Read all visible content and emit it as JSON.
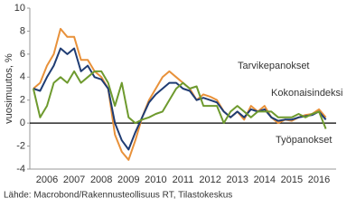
{
  "chart_data": {
    "type": "line",
    "y_label": "vuosimuutos, %",
    "source": "Lähde: Macrobond/Rakennusteollisuus RT, Tilastokeskus",
    "x": [
      2006.0,
      2006.25,
      2006.5,
      2006.75,
      2007.0,
      2007.25,
      2007.5,
      2007.75,
      2008.0,
      2008.25,
      2008.5,
      2008.75,
      2009.0,
      2009.25,
      2009.5,
      2009.75,
      2010.0,
      2010.25,
      2010.5,
      2010.75,
      2011.0,
      2011.25,
      2011.5,
      2011.75,
      2012.0,
      2012.25,
      2012.5,
      2012.75,
      2013.0,
      2013.25,
      2013.5,
      2013.75,
      2014.0,
      2014.25,
      2014.5,
      2014.75,
      2015.0,
      2015.25,
      2015.5,
      2015.75,
      2016.0,
      2016.25,
      2016.5,
      2016.75
    ],
    "series": [
      {
        "name": "Tarvikepanokset",
        "color": "#e8913a",
        "values": [
          3,
          3.5,
          5,
          6,
          8.2,
          7.5,
          7.5,
          5.5,
          5.5,
          4.5,
          4,
          3,
          -1,
          -2.5,
          -3.2,
          -1.5,
          0.5,
          2,
          3,
          4,
          4.5,
          4,
          3.5,
          3,
          2,
          2.5,
          2.3,
          2,
          1,
          0.5,
          1,
          0.3,
          1.5,
          1,
          1.5,
          0.5,
          0,
          0.3,
          0.2,
          0.5,
          0.7,
          0.8,
          1.2,
          0.5
        ]
      },
      {
        "name": "Kokonaisindeksi",
        "color": "#1f3c73",
        "values": [
          3,
          2.8,
          4,
          5,
          6.5,
          6,
          6.5,
          4.5,
          5,
          4,
          3.8,
          3,
          0,
          -1.5,
          -2.3,
          -0.8,
          0.5,
          1.8,
          2.5,
          3,
          3.5,
          3.5,
          3,
          2.8,
          2,
          2.2,
          2,
          1.8,
          1,
          0.5,
          1,
          0.5,
          1.2,
          1,
          1.2,
          0.5,
          0.2,
          0.3,
          0.3,
          0.5,
          0.6,
          0.7,
          1,
          0.3
        ]
      },
      {
        "name": "Työpanokset",
        "color": "#6e9a2e",
        "values": [
          3,
          0.5,
          1.5,
          3.5,
          4,
          3.5,
          4.5,
          3.5,
          4,
          4.5,
          4.5,
          3.5,
          1.5,
          3.5,
          0.5,
          0,
          0.3,
          0.5,
          0.8,
          1,
          2,
          3,
          3.5,
          3,
          3.2,
          1.5,
          1.5,
          1.5,
          0,
          1,
          1.5,
          1,
          0.5,
          1,
          1,
          1,
          0.5,
          0.5,
          0.5,
          0.8,
          0.5,
          0.8,
          1,
          -0.5
        ]
      }
    ],
    "xlim": [
      2005.87,
      2017.13
    ],
    "xticks": [
      {
        "value": 2006.5,
        "label": "2006"
      },
      {
        "value": 2007.5,
        "label": "2007"
      },
      {
        "value": 2008.5,
        "label": "2008"
      },
      {
        "value": 2009.5,
        "label": "2009"
      },
      {
        "value": 2010.5,
        "label": "2010"
      },
      {
        "value": 2011.5,
        "label": "2011"
      },
      {
        "value": 2012.5,
        "label": "2012"
      },
      {
        "value": 2013.5,
        "label": "2013"
      },
      {
        "value": 2014.5,
        "label": "2014"
      },
      {
        "value": 2015.5,
        "label": "2015"
      },
      {
        "value": 2016.5,
        "label": "2016"
      }
    ],
    "ylim": [
      -4,
      10
    ],
    "yticks": [
      -4,
      -2,
      0,
      2,
      4,
      6,
      8,
      10
    ]
  }
}
